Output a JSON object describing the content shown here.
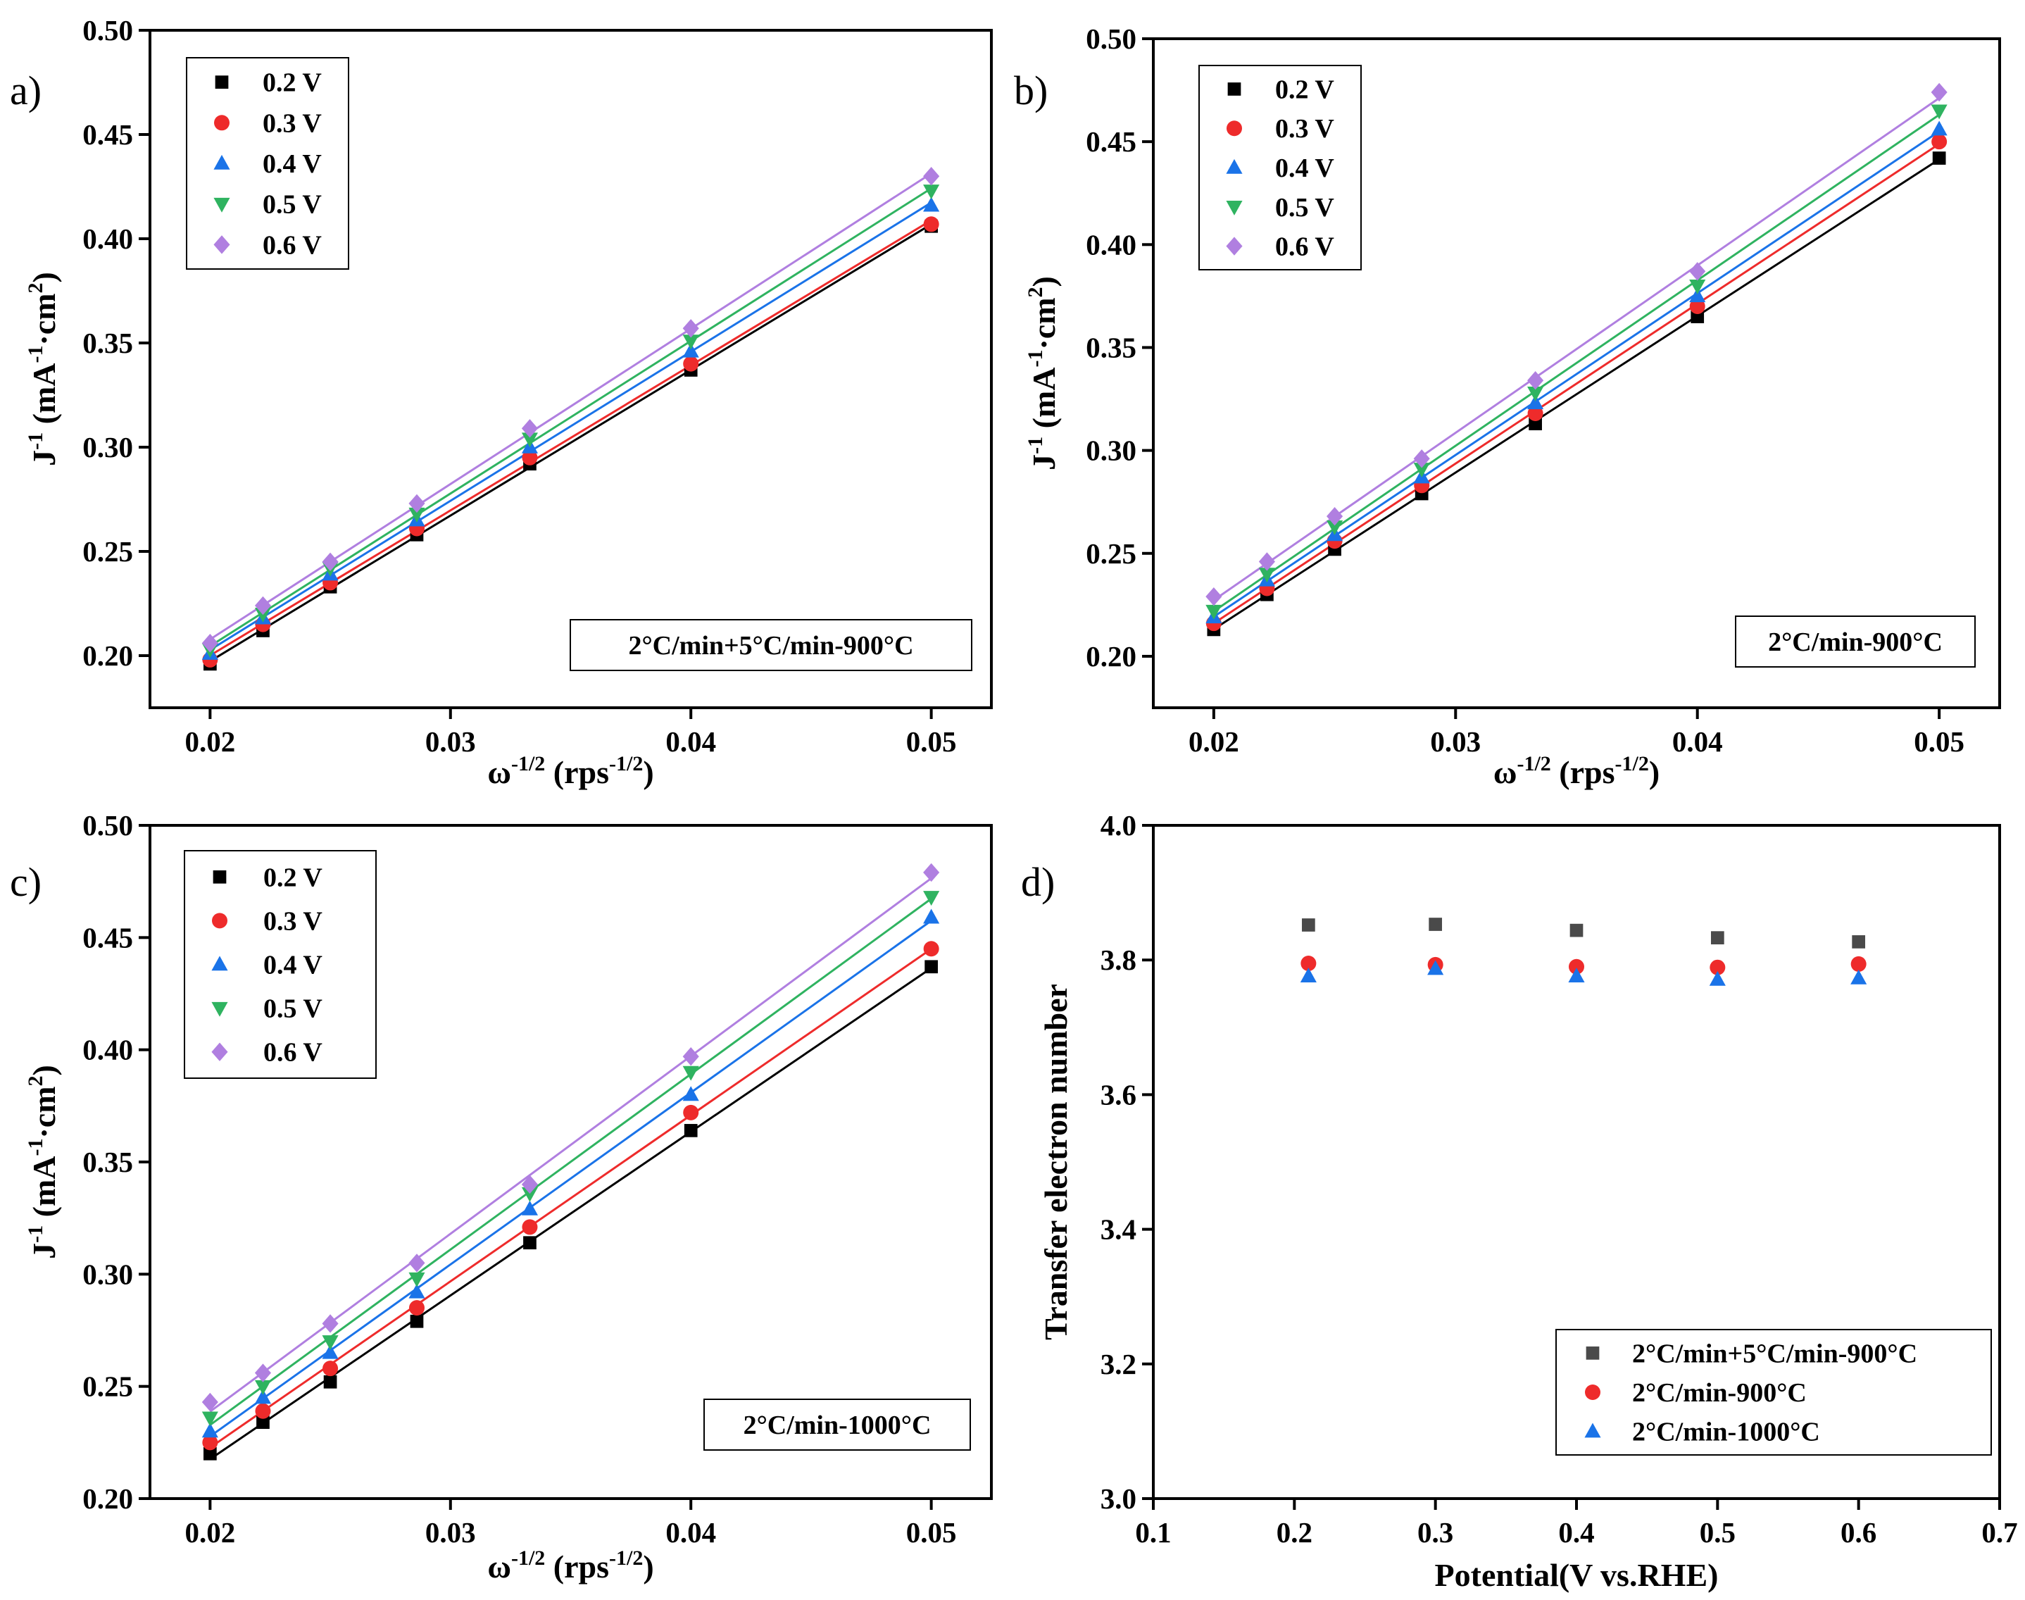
{
  "colors": {
    "0.2 V": "#000000",
    "0.3 V": "#ee2b2b",
    "0.4 V": "#1a73e8",
    "0.5 V": "#2fb360",
    "0.6 V": "#b07fe0",
    "2°C/min+5°C/min-900°C": "#4a4a4a",
    "2°C/min-900°C": "#ee2b2b",
    "2°C/min-1000°C": "#1a73e8"
  },
  "markers": {
    "0.2 V": "square",
    "0.3 V": "circle",
    "0.4 V": "triangle-up",
    "0.5 V": "triangle-down",
    "0.6 V": "diamond"
  },
  "chart_data": [
    {
      "panel": "a)",
      "type": "scatter",
      "fit_lines": true,
      "xlabel": "ω-1/2 (rps-1/2)",
      "ylabel": "J-1 (mA-1·cm2)",
      "annotation": "2°C/min+5°C/min-900°C",
      "xlim": [
        0.0175,
        0.0525
      ],
      "ylim": [
        0.175,
        0.5
      ],
      "xticks": [
        "0.02",
        "0.03",
        "0.04",
        "0.05"
      ],
      "yticks": [
        "0.20",
        "0.25",
        "0.30",
        "0.35",
        "0.40",
        "0.45",
        "0.50"
      ],
      "legend": "top-left",
      "x": [
        0.02,
        0.0222,
        0.025,
        0.0286,
        0.0333,
        0.04,
        0.05
      ],
      "series": [
        {
          "name": "0.2 V",
          "values": [
            0.196,
            0.212,
            0.233,
            0.258,
            0.292,
            0.337,
            0.406
          ]
        },
        {
          "name": "0.3 V",
          "values": [
            0.198,
            0.215,
            0.235,
            0.261,
            0.295,
            0.34,
            0.407
          ]
        },
        {
          "name": "0.4 V",
          "values": [
            0.201,
            0.218,
            0.239,
            0.265,
            0.3,
            0.346,
            0.416
          ]
        },
        {
          "name": "0.5 V",
          "values": [
            0.203,
            0.22,
            0.242,
            0.268,
            0.304,
            0.351,
            0.423
          ]
        },
        {
          "name": "0.6 V",
          "values": [
            0.206,
            0.224,
            0.245,
            0.273,
            0.309,
            0.357,
            0.43
          ]
        }
      ]
    },
    {
      "panel": "b)",
      "type": "scatter",
      "fit_lines": true,
      "xlabel": "ω-1/2 (rps-1/2)",
      "ylabel": "J-1 (mA-1·cm2)",
      "annotation": "2°C/min-900°C",
      "xlim": [
        0.0175,
        0.0525
      ],
      "ylim": [
        0.175,
        0.5
      ],
      "xticks": [
        "0.02",
        "0.03",
        "0.04",
        "0.05"
      ],
      "yticks": [
        "0.20",
        "0.25",
        "0.30",
        "0.35",
        "0.40",
        "0.45",
        "0.50"
      ],
      "legend": "top-left",
      "x": [
        0.02,
        0.0222,
        0.025,
        0.0286,
        0.0333,
        0.04,
        0.05
      ],
      "series": [
        {
          "name": "0.2 V",
          "values": [
            0.213,
            0.23,
            0.252,
            0.279,
            0.313,
            0.365,
            0.442
          ]
        },
        {
          "name": "0.3 V",
          "values": [
            0.216,
            0.233,
            0.256,
            0.283,
            0.318,
            0.37,
            0.45
          ]
        },
        {
          "name": "0.4 V",
          "values": [
            0.219,
            0.237,
            0.259,
            0.287,
            0.323,
            0.375,
            0.456
          ]
        },
        {
          "name": "0.5 V",
          "values": [
            0.222,
            0.24,
            0.263,
            0.291,
            0.328,
            0.38,
            0.465
          ]
        },
        {
          "name": "0.6 V",
          "values": [
            0.229,
            0.246,
            0.268,
            0.296,
            0.334,
            0.387,
            0.474
          ]
        }
      ]
    },
    {
      "panel": "c)",
      "type": "scatter",
      "fit_lines": true,
      "xlabel": "ω-1/2 (rps-1/2)",
      "ylabel": "J-1 (mA-1·cm2)",
      "annotation": "2°C/min-1000°C",
      "xlim": [
        0.0175,
        0.0525
      ],
      "ylim": [
        0.2,
        0.5
      ],
      "xticks": [
        "0.02",
        "0.03",
        "0.04",
        "0.05"
      ],
      "yticks": [
        "0.20",
        "0.25",
        "0.30",
        "0.35",
        "0.40",
        "0.45",
        "0.50"
      ],
      "legend": "top-left",
      "x": [
        0.02,
        0.0222,
        0.025,
        0.0286,
        0.0333,
        0.04,
        0.05
      ],
      "series": [
        {
          "name": "0.2 V",
          "values": [
            0.22,
            0.234,
            0.252,
            0.279,
            0.314,
            0.364,
            0.437
          ]
        },
        {
          "name": "0.3 V",
          "values": [
            0.225,
            0.239,
            0.258,
            0.285,
            0.321,
            0.372,
            0.445
          ]
        },
        {
          "name": "0.4 V",
          "values": [
            0.23,
            0.245,
            0.265,
            0.292,
            0.329,
            0.38,
            0.459
          ]
        },
        {
          "name": "0.5 V",
          "values": [
            0.236,
            0.25,
            0.27,
            0.298,
            0.336,
            0.39,
            0.468
          ]
        },
        {
          "name": "0.6 V",
          "values": [
            0.243,
            0.256,
            0.278,
            0.305,
            0.34,
            0.397,
            0.479
          ]
        }
      ]
    },
    {
      "panel": "d)",
      "type": "scatter",
      "fit_lines": false,
      "xlabel": "Potential(V vs.RHE)",
      "ylabel": "Transfer electron number",
      "xlim": [
        0.1,
        0.7
      ],
      "ylim": [
        3.0,
        4.0
      ],
      "xticks": [
        "0.1",
        "0.2",
        "0.3",
        "0.4",
        "0.5",
        "0.6",
        "0.7"
      ],
      "yticks": [
        "3.0",
        "3.2",
        "3.4",
        "3.6",
        "3.8",
        "4.0"
      ],
      "legend": "bottom-right",
      "x": [
        0.21,
        0.3,
        0.4,
        0.5,
        0.6
      ],
      "series": [
        {
          "name": "2°C/min+5°C/min-900°C",
          "marker": "square",
          "values": [
            3.852,
            3.853,
            3.844,
            3.833,
            3.827
          ]
        },
        {
          "name": "2°C/min-900°C",
          "marker": "circle",
          "values": [
            3.795,
            3.793,
            3.79,
            3.789,
            3.794
          ]
        },
        {
          "name": "2°C/min-1000°C",
          "marker": "triangle-up",
          "values": [
            3.776,
            3.787,
            3.776,
            3.771,
            3.773
          ]
        }
      ]
    }
  ]
}
